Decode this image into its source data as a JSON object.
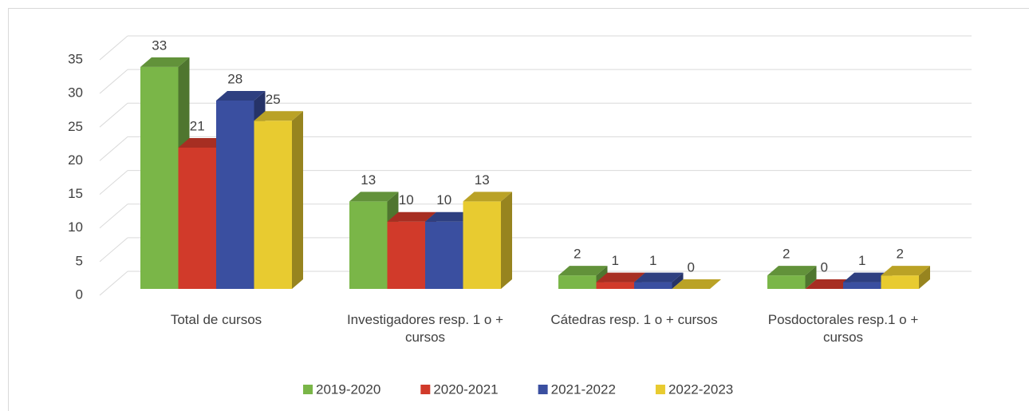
{
  "chart_data": {
    "type": "bar3d",
    "categories": [
      "Total de cursos",
      "Investigadores resp. 1 o + cursos",
      "Cátedras resp. 1 o + cursos",
      "Posdoctorales resp.1 o + cursos"
    ],
    "series": [
      {
        "name": "2019-2020",
        "color": "#7ab648",
        "values": [
          33,
          13,
          2,
          2
        ]
      },
      {
        "name": "2020-2021",
        "color": "#d13a2a",
        "values": [
          21,
          10,
          1,
          0
        ]
      },
      {
        "name": "2021-2022",
        "color": "#3a4fa0",
        "values": [
          28,
          10,
          1,
          1
        ]
      },
      {
        "name": "2022-2023",
        "color": "#e8cb30",
        "values": [
          25,
          13,
          0,
          2
        ]
      }
    ],
    "ylim": [
      0,
      35
    ],
    "yticks": [
      0,
      5,
      10,
      15,
      20,
      25,
      30,
      35
    ],
    "grid": true,
    "legend": "bottom"
  }
}
